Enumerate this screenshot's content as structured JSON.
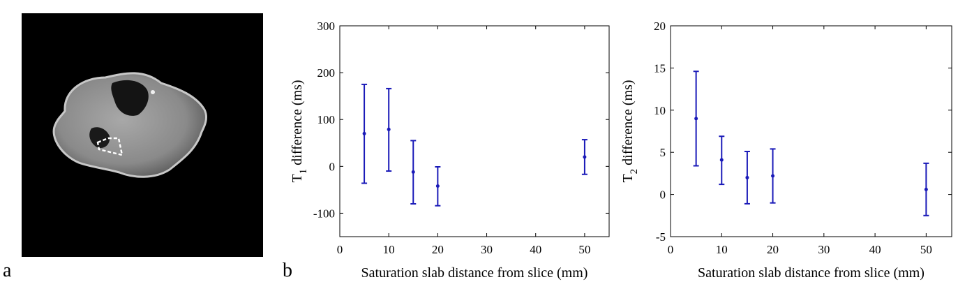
{
  "panel_labels": {
    "a": "a",
    "b": "b"
  },
  "colors": {
    "series": "#1a1ab8",
    "axis": "#000000",
    "background": "#ffffff",
    "image_background": "#000000"
  },
  "mri_image": {
    "alt": "Axial MR image of a leg cross-section with a dashed ROI outline"
  },
  "chart_data": [
    {
      "type": "scatter",
      "style": "errorbar",
      "title": "",
      "xlabel": "Saturation slab distance from slice (mm)",
      "ylabel_main": "T",
      "ylabel_sub": "1",
      "ylabel_rest": " difference (ms)",
      "xlim": [
        0,
        55
      ],
      "ylim": [
        -150,
        300
      ],
      "xticks": [
        0,
        10,
        20,
        30,
        40,
        50
      ],
      "yticks": [
        -100,
        0,
        100,
        200,
        300
      ],
      "grid": false,
      "series": [
        {
          "name": "T1 difference",
          "x": [
            5,
            10,
            15,
            20,
            50
          ],
          "y": [
            70,
            79,
            -12,
            -42,
            20
          ],
          "err_low": [
            -36,
            -10,
            -80,
            -84,
            -17
          ],
          "err_high": [
            175,
            166,
            55,
            -1,
            57
          ]
        }
      ]
    },
    {
      "type": "scatter",
      "style": "errorbar",
      "title": "",
      "xlabel": "Saturation slab distance from slice (mm)",
      "ylabel_main": "T",
      "ylabel_sub": "2",
      "ylabel_rest": " difference (ms)",
      "xlim": [
        0,
        55
      ],
      "ylim": [
        -5,
        20
      ],
      "xticks": [
        0,
        10,
        20,
        30,
        40,
        50
      ],
      "yticks": [
        -5,
        0,
        5,
        10,
        15,
        20
      ],
      "grid": false,
      "series": [
        {
          "name": "T2 difference",
          "x": [
            5,
            10,
            15,
            20,
            50
          ],
          "y": [
            9.0,
            4.1,
            2.0,
            2.2,
            0.6
          ],
          "err_low": [
            3.4,
            1.2,
            -1.1,
            -1.0,
            -2.5
          ],
          "err_high": [
            14.6,
            6.9,
            5.1,
            5.4,
            3.7
          ]
        }
      ]
    }
  ]
}
